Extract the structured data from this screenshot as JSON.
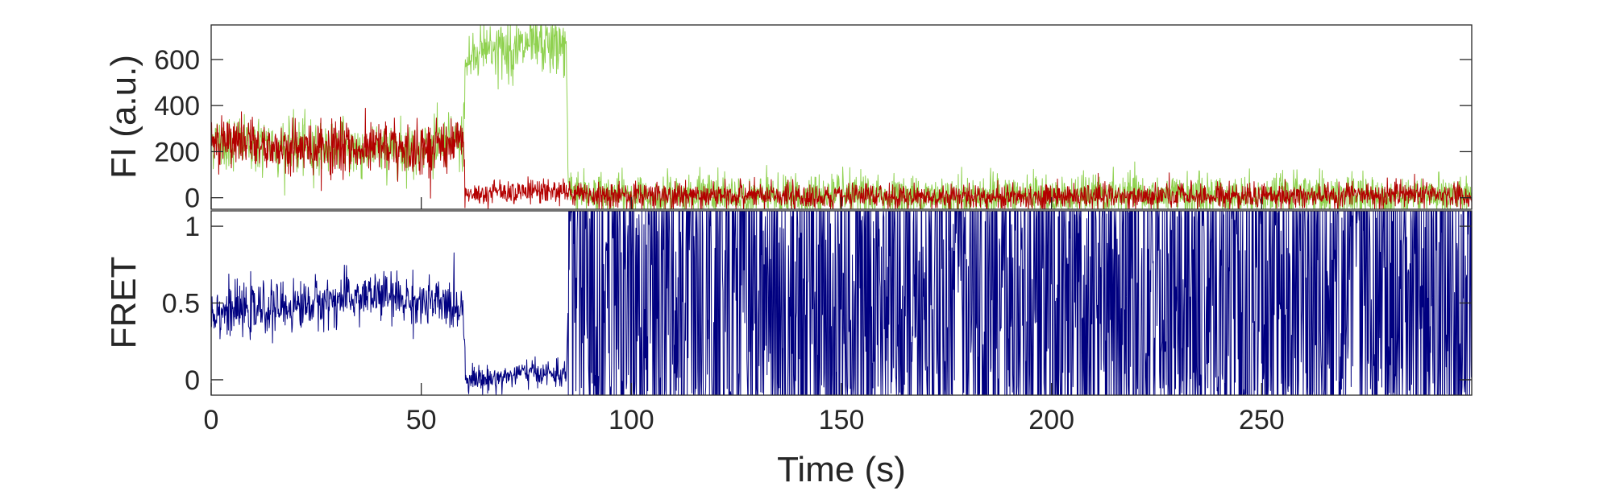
{
  "chart_data": [
    {
      "type": "line",
      "panel": "top",
      "ylabel": "FI (a.u.)",
      "xlim": [
        0,
        300
      ],
      "ylim": [
        -50,
        750
      ],
      "yticks": [
        0,
        200,
        400,
        600
      ],
      "ytick_labels": [
        "0",
        "200",
        "400",
        "600"
      ],
      "grid": false,
      "series": [
        {
          "color": "#8fd14f",
          "x": [
            0,
            5,
            10,
            15,
            20,
            25,
            30,
            35,
            40,
            45,
            50,
            55,
            60,
            60.5,
            65,
            70,
            75,
            80,
            84.5,
            85,
            90,
            100,
            150,
            200,
            250,
            300
          ],
          "values": [
            250,
            240,
            230,
            220,
            220,
            215,
            225,
            205,
            215,
            210,
            215,
            225,
            240,
            580,
            660,
            640,
            650,
            660,
            650,
            50,
            15,
            10,
            5,
            5,
            10,
            10
          ]
        },
        {
          "color": "#b30000",
          "x": [
            0,
            5,
            10,
            15,
            20,
            25,
            30,
            35,
            40,
            45,
            50,
            55,
            60,
            60.5,
            65,
            70,
            75,
            80,
            84.5,
            85,
            90,
            100,
            150,
            200,
            250,
            300
          ],
          "values": [
            250,
            240,
            230,
            220,
            220,
            215,
            225,
            205,
            215,
            210,
            215,
            225,
            240,
            10,
            20,
            30,
            25,
            30,
            25,
            10,
            10,
            10,
            5,
            5,
            10,
            10
          ]
        }
      ]
    },
    {
      "type": "line",
      "panel": "bottom",
      "ylabel": "FRET",
      "xlabel": "Time (s)",
      "xlim": [
        0,
        300
      ],
      "ylim": [
        -0.1,
        1.1
      ],
      "yticks": [
        0,
        0.5,
        1
      ],
      "ytick_labels": [
        "0",
        "0.5",
        "1"
      ],
      "xticks": [
        0,
        50,
        100,
        150,
        200,
        250
      ],
      "xtick_labels": [
        "0",
        "50",
        "100",
        "150",
        "200",
        "250"
      ],
      "grid": false,
      "series": [
        {
          "color": "#000080",
          "x": [
            0,
            10,
            20,
            30,
            40,
            50,
            60,
            60.5,
            65,
            70,
            75,
            80,
            84.5,
            85,
            100,
            150,
            200,
            250,
            300
          ],
          "values": [
            0.45,
            0.45,
            0.48,
            0.52,
            0.55,
            0.5,
            0.48,
            0.02,
            0.0,
            0.02,
            0.05,
            0.04,
            0.03,
            0.5,
            0.5,
            0.5,
            0.5,
            0.5,
            0.5
          ],
          "range_after_85s": [
            -0.1,
            1.1
          ]
        }
      ]
    }
  ],
  "colors": {
    "green": "#8fd14f",
    "red": "#b30000",
    "blue": "#000080",
    "axes": "#262626"
  }
}
